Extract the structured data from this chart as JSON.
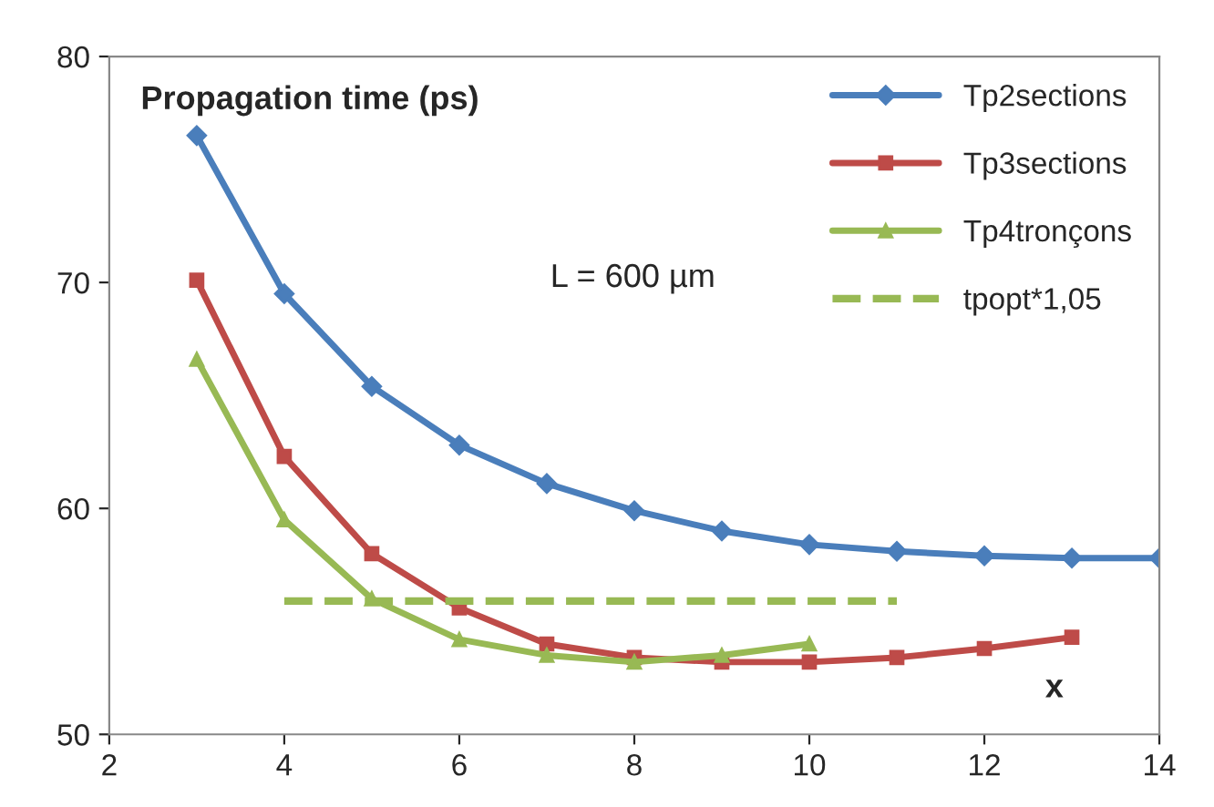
{
  "chart_data": {
    "type": "line",
    "title": "Propagation time (ps)",
    "xlabel": "x",
    "annotations": [
      "L = 600 µm"
    ],
    "series": [
      {
        "name": "Tp2sections",
        "color": "#4a7ebb",
        "marker": "diamond",
        "x": [
          3,
          4,
          5,
          6,
          7,
          8,
          9,
          10,
          11,
          12,
          13,
          14
        ],
        "values": [
          76.5,
          69.5,
          65.4,
          62.8,
          61.1,
          59.9,
          59.0,
          58.4,
          58.1,
          57.9,
          57.8,
          57.8
        ]
      },
      {
        "name": "Tp3sections",
        "color": "#be4b48",
        "marker": "square",
        "x": [
          3,
          4,
          5,
          6,
          7,
          8,
          9,
          10,
          11,
          12,
          13
        ],
        "values": [
          70.1,
          62.3,
          58.0,
          55.6,
          54.0,
          53.4,
          53.2,
          53.2,
          53.4,
          53.8,
          54.3
        ]
      },
      {
        "name": "Tp4tronçons",
        "color": "#98b954",
        "marker": "triangle",
        "x": [
          3,
          4,
          5,
          6,
          7,
          8,
          9,
          10
        ],
        "values": [
          66.6,
          59.5,
          56.0,
          54.2,
          53.5,
          53.2,
          53.5,
          54.0
        ]
      },
      {
        "name": "tpopt*1,05",
        "color": "#98b954",
        "marker": "none",
        "line_style": "dashed",
        "x": [
          4,
          5,
          6,
          7,
          8,
          9,
          10,
          11
        ],
        "values": [
          55.9,
          55.9,
          55.9,
          55.9,
          55.9,
          55.9,
          55.9,
          55.9
        ]
      }
    ],
    "xlim": [
      2,
      14
    ],
    "xticks": [
      2,
      4,
      6,
      8,
      10,
      12,
      14
    ],
    "ylim": [
      50,
      80
    ],
    "yticks": [
      50,
      60,
      70,
      80
    ],
    "grid": false,
    "legend": "top right"
  }
}
